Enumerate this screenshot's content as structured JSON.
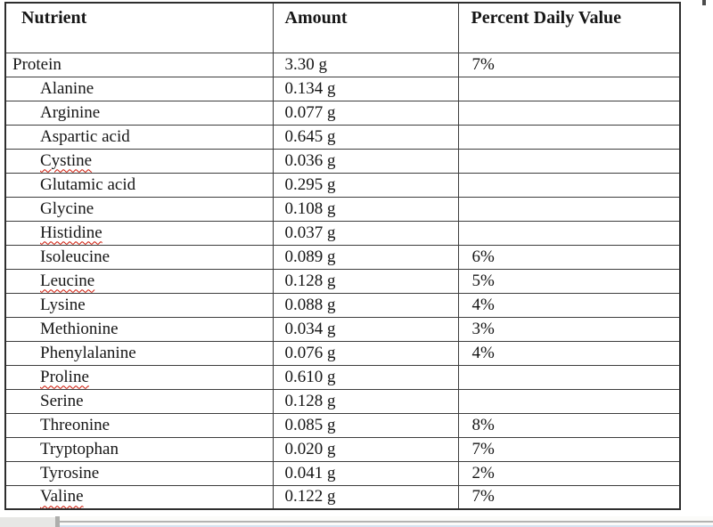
{
  "document": {
    "table": {
      "headers": [
        "Nutrient",
        "Amount",
        "Percent Daily Value"
      ],
      "rows": [
        {
          "nutrient": "Protein",
          "amount": "3.30 g",
          "pdv": "7%",
          "indent": false,
          "misspelled": false
        },
        {
          "nutrient": "Alanine",
          "amount": "0.134 g",
          "pdv": "",
          "indent": true,
          "misspelled": false
        },
        {
          "nutrient": "Arginine",
          "amount": "0.077 g",
          "pdv": "",
          "indent": true,
          "misspelled": false
        },
        {
          "nutrient": "Aspartic acid",
          "amount": "0.645 g",
          "pdv": "",
          "indent": true,
          "misspelled": false
        },
        {
          "nutrient": "Cystine",
          "amount": "0.036 g",
          "pdv": "",
          "indent": true,
          "misspelled": true
        },
        {
          "nutrient": "Glutamic acid",
          "amount": "0.295 g",
          "pdv": "",
          "indent": true,
          "misspelled": false
        },
        {
          "nutrient": "Glycine",
          "amount": "0.108 g",
          "pdv": "",
          "indent": true,
          "misspelled": false
        },
        {
          "nutrient": "Histidine",
          "amount": "0.037 g",
          "pdv": "",
          "indent": true,
          "misspelled": true
        },
        {
          "nutrient": "Isoleucine",
          "amount": "0.089 g",
          "pdv": "6%",
          "indent": true,
          "misspelled": false
        },
        {
          "nutrient": "Leucine",
          "amount": "0.128 g",
          "pdv": "5%",
          "indent": true,
          "misspelled": true
        },
        {
          "nutrient": "Lysine",
          "amount": "0.088 g",
          "pdv": "4%",
          "indent": true,
          "misspelled": false
        },
        {
          "nutrient": "Methionine",
          "amount": "0.034 g",
          "pdv": "3%",
          "indent": true,
          "misspelled": false
        },
        {
          "nutrient": "Phenylalanine",
          "amount": "0.076 g",
          "pdv": "4%",
          "indent": true,
          "misspelled": false
        },
        {
          "nutrient": "Proline",
          "amount": "0.610 g",
          "pdv": "",
          "indent": true,
          "misspelled": true
        },
        {
          "nutrient": "Serine",
          "amount": "0.128 g",
          "pdv": "",
          "indent": true,
          "misspelled": false
        },
        {
          "nutrient": "Threonine",
          "amount": "0.085 g",
          "pdv": "8%",
          "indent": true,
          "misspelled": false
        },
        {
          "nutrient": "Tryptophan",
          "amount": "0.020 g",
          "pdv": "7%",
          "indent": true,
          "misspelled": false
        },
        {
          "nutrient": "Tyrosine",
          "amount": "0.041 g",
          "pdv": "2%",
          "indent": true,
          "misspelled": false
        },
        {
          "nutrient": "Valine",
          "amount": "0.122 g",
          "pdv": "7%",
          "indent": true,
          "misspelled": true
        }
      ]
    },
    "colors": {
      "spellcheck_underline": "#cc1100",
      "table_border": "#3d3d3d",
      "bottom_bar_gray": "#e7e7e5",
      "bottom_bar_divider": "#aeaeac",
      "bottom_bar_blue_edge": "#d6e2f0"
    }
  }
}
